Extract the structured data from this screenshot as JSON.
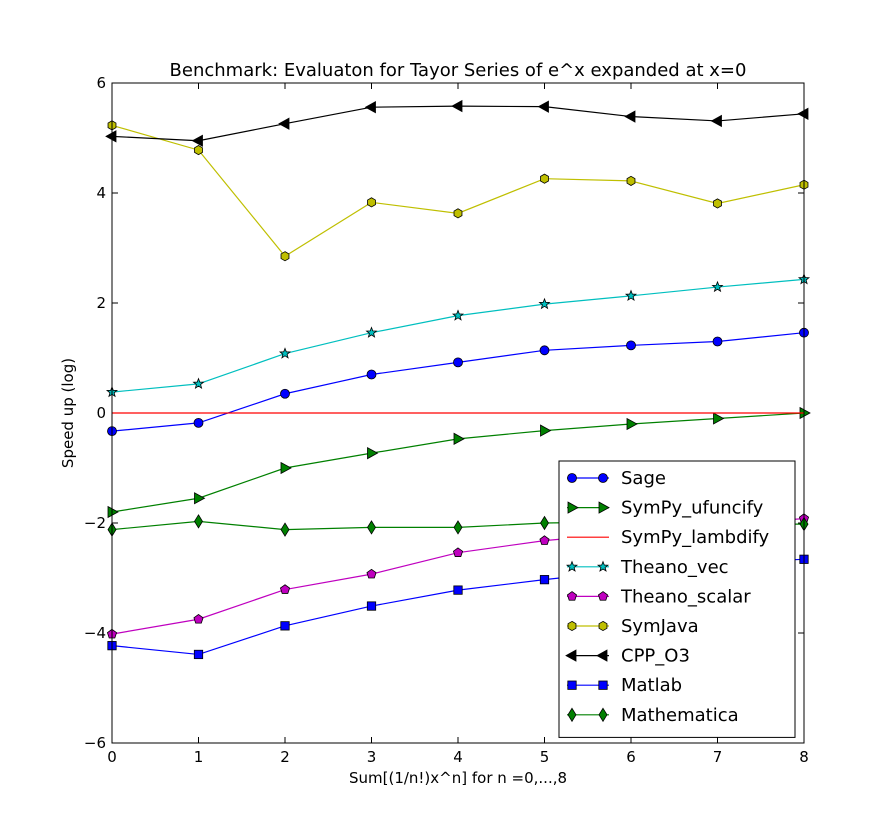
{
  "chart_data": {
    "type": "line",
    "title": "Benchmark: Evaluaton for Tayor Series of e^x expanded at x=0",
    "xlabel": "Sum[(1/n!)x^n] for n =0,...,8",
    "ylabel": "Speed up (log)",
    "xlim": [
      0,
      8
    ],
    "ylim": [
      -6,
      6
    ],
    "xticks": [
      "0",
      "1",
      "2",
      "3",
      "4",
      "5",
      "6",
      "7",
      "8"
    ],
    "yticks": [
      "−6",
      "−4",
      "−2",
      "0",
      "2",
      "4",
      "6"
    ],
    "grid": false,
    "legend_position": "lower-right",
    "x": [
      0,
      1,
      2,
      3,
      4,
      5,
      6,
      7,
      8
    ],
    "series": [
      {
        "name": "Sage",
        "color": "#0000ff",
        "marker": "circle",
        "values": [
          -0.33,
          -0.18,
          0.35,
          0.7,
          0.92,
          1.14,
          1.23,
          1.3,
          1.46
        ]
      },
      {
        "name": "SymPy_ufuncify",
        "color": "#008000",
        "marker": "triangle-right",
        "values": [
          -1.8,
          -1.55,
          -1.0,
          -0.73,
          -0.47,
          -0.32,
          -0.2,
          -0.1,
          0.0
        ]
      },
      {
        "name": "SymPy_lambdify",
        "color": "#ff0000",
        "marker": "none",
        "values": [
          0,
          0,
          0,
          0,
          0,
          0,
          0,
          0,
          0
        ]
      },
      {
        "name": "Theano_vec",
        "color": "#00bfbf",
        "marker": "star",
        "values": [
          0.38,
          0.53,
          1.08,
          1.46,
          1.77,
          1.98,
          2.13,
          2.29,
          2.43
        ]
      },
      {
        "name": "Theano_scalar",
        "color": "#bf00bf",
        "marker": "pentagon",
        "values": [
          -4.02,
          -3.75,
          -3.21,
          -2.93,
          -2.54,
          -2.32,
          -2.18,
          -2.03,
          -1.92
        ]
      },
      {
        "name": "SymJava",
        "color": "#bfbf00",
        "marker": "hexagon",
        "values": [
          5.23,
          4.78,
          2.85,
          3.83,
          3.63,
          4.26,
          4.22,
          3.81,
          4.15
        ]
      },
      {
        "name": "CPP_O3",
        "color": "#000000",
        "marker": "triangle-left",
        "values": [
          5.03,
          4.95,
          5.26,
          5.56,
          5.58,
          5.57,
          5.39,
          5.31,
          5.44
        ]
      },
      {
        "name": "Matlab",
        "color": "#0000ff",
        "marker": "square",
        "values": [
          -4.23,
          -4.39,
          -3.87,
          -3.51,
          -3.22,
          -3.03,
          -2.86,
          -2.72,
          -2.66
        ]
      },
      {
        "name": "Mathematica",
        "color": "#008000",
        "marker": "diamond",
        "values": [
          -2.12,
          -1.97,
          -2.12,
          -2.08,
          -2.08,
          -2.0,
          -1.98,
          -2.02,
          -2.02
        ]
      }
    ]
  }
}
